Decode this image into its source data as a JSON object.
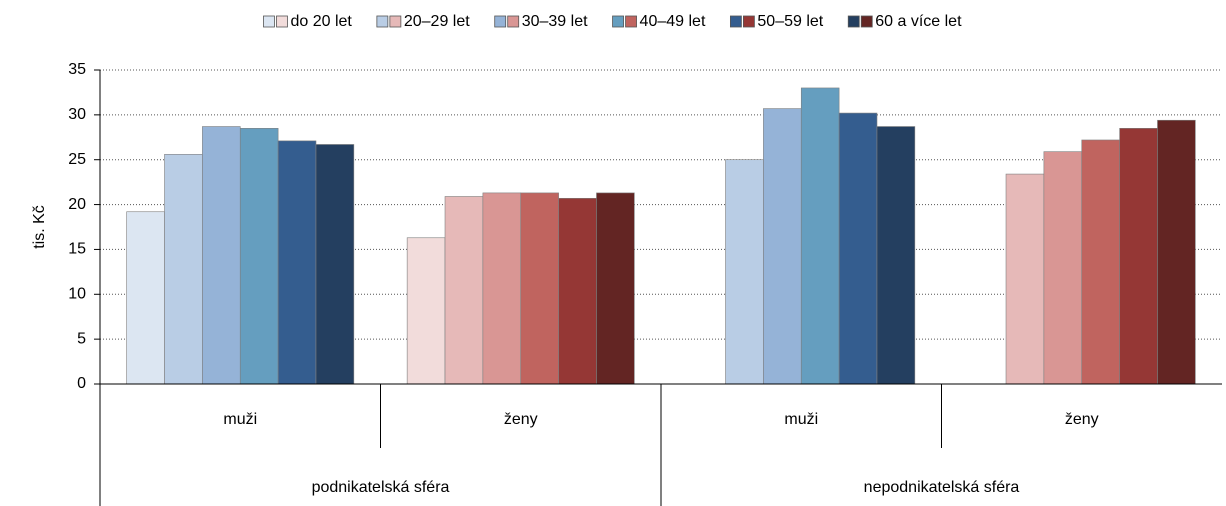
{
  "chart_data": {
    "type": "bar",
    "ylabel": "tis. Kč",
    "ylim": [
      0,
      35
    ],
    "yticks": [
      0,
      5,
      10,
      15,
      20,
      25,
      30,
      35
    ],
    "grid": true,
    "legend": "top",
    "category_groups": [
      {
        "name": "podnikatelská sféra",
        "categories": [
          "muži",
          "ženy"
        ]
      },
      {
        "name": "nepodnikatelská sféra",
        "categories": [
          "muži",
          "ženy"
        ]
      }
    ],
    "series": [
      {
        "name": "do 20 let",
        "colors": [
          "#dce6f2",
          "#f2dcdb",
          "#dce6f2",
          "#f2dcdb"
        ],
        "values": [
          19.2,
          16.3,
          null,
          null
        ]
      },
      {
        "name": "20–29 let",
        "colors": [
          "#b9cde5",
          "#e6b9b8",
          "#b9cde5",
          "#e6b9b8"
        ],
        "values": [
          25.6,
          20.9,
          25.0,
          23.4
        ]
      },
      {
        "name": "30–39 let",
        "colors": [
          "#95b3d7",
          "#d99694",
          "#95b3d7",
          "#d99694"
        ],
        "values": [
          28.7,
          21.3,
          30.7,
          25.9
        ]
      },
      {
        "name": "40–49 let",
        "colors": [
          "#659ebf",
          "#c0645f",
          "#659ebf",
          "#c0645f"
        ],
        "values": [
          28.5,
          21.3,
          33.0,
          27.2
        ]
      },
      {
        "name": "50–59 let",
        "colors": [
          "#345d8f",
          "#953735",
          "#345d8f",
          "#953735"
        ],
        "values": [
          27.1,
          20.7,
          30.2,
          28.5
        ]
      },
      {
        "name": "60 a více let",
        "colors": [
          "#243f60",
          "#632523",
          "#243f60",
          "#632523"
        ],
        "values": [
          26.7,
          21.3,
          28.7,
          29.4
        ]
      }
    ]
  }
}
